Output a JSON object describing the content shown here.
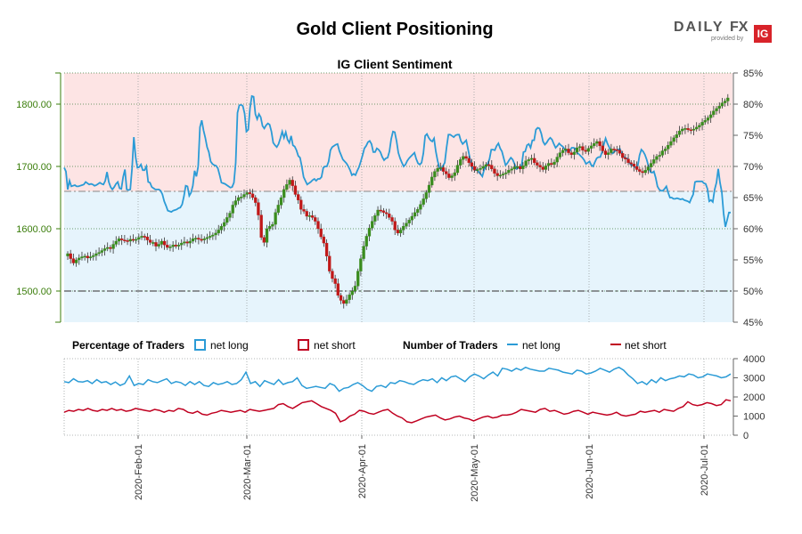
{
  "title": "Gold Client Positioning",
  "subtitle": "IG Client Sentiment",
  "logo": {
    "brand": "DAILY",
    "brand_fx": "FX",
    "provided_by": "provided by",
    "ig": "IG"
  },
  "colors": {
    "net_long": "#2b9bd6",
    "net_short": "#c00020",
    "candle_up": "#3a8c1e",
    "candle_down": "#c01818",
    "bg_short_zone": "#fde4e4",
    "bg_long_zone": "#e6f4fc",
    "left_axis": "#3a7d0a",
    "grid": "#3f7f3f"
  },
  "legend": {
    "percentage_header": "Percentage of Traders",
    "number_header": "Number of Traders",
    "net_long": "net long",
    "net_short": "net short"
  },
  "chart_data": [
    {
      "type": "line",
      "name": "price_and_sentiment",
      "left_axis": {
        "ticks": [
          "1500.00",
          "1600.00",
          "1700.00",
          "1800.00"
        ],
        "range": [
          1450,
          1850
        ]
      },
      "right_axis": {
        "ticks": [
          "45%",
          "50%",
          "55%",
          "60%",
          "65%",
          "70%",
          "75%",
          "80%",
          "85%"
        ],
        "range": [
          45,
          85
        ]
      },
      "reference_lines": {
        "price_hline": 1500,
        "sentiment_hline": 66
      },
      "series": [
        {
          "name": "net long",
          "axis": "right",
          "values": [
            69.8,
            69.2,
            66.3,
            67.7,
            66.8,
            66.9,
            67,
            66.8,
            66.8,
            66.9,
            67,
            67.1,
            67.5,
            67.3,
            67.1,
            67.2,
            67.1,
            66.9,
            67,
            67.2,
            67.4,
            67.2,
            67.1,
            67.7,
            69.1,
            67.5,
            66.7,
            66.3,
            66.7,
            67.2,
            67.5,
            66.5,
            66.4,
            68.3,
            69.5,
            66.3,
            66.2,
            66.3,
            69.7,
            74.7,
            71.5,
            69.8,
            69.9,
            70.3,
            69.4,
            69.4,
            70,
            67.5,
            67.4,
            66.7,
            66.5,
            66.3,
            66.3,
            66.3,
            66.1,
            65.5,
            64.4,
            63.7,
            62.9,
            62.8,
            62.7,
            62.9,
            63,
            63.1,
            63.3,
            63.4,
            63.9,
            65.2,
            66.9,
            66.8,
            65.3,
            65.8,
            66.9,
            69.3,
            68.4,
            70,
            76.3,
            77.4,
            75.8,
            74.6,
            73.1,
            72.3,
            70.8,
            70.4,
            70.2,
            70.1,
            69.7,
            68.6,
            67.4,
            67.3,
            67.2,
            67,
            66.8,
            66.6,
            66.7,
            67.4,
            70.6,
            78.6,
            79.8,
            79.9,
            79.7,
            78.5,
            75.6,
            75.9,
            79.4,
            81.3,
            81.2,
            78.4,
            77.6,
            78.4,
            77.9,
            76.5,
            76.1,
            76.6,
            76.9,
            76.7,
            75.6,
            73.8,
            73.4,
            73.1,
            73.6,
            74.5,
            75.6,
            74.6,
            75.5,
            74.3,
            73.8,
            74.9,
            73.4,
            73.2,
            72.6,
            71.7,
            71.4,
            70,
            68.3,
            67.7,
            67.1,
            67.3,
            67.5,
            67.8,
            68,
            67.7,
            68,
            68,
            68.3,
            69.8,
            70,
            70,
            70.8,
            72.6,
            73.1,
            73.3,
            73.5,
            73.6,
            72.5,
            71.8,
            71.1,
            70.8,
            70.5,
            70,
            69.4,
            68.6,
            68.8,
            68.6,
            69.3,
            69.9,
            70.8,
            71.8,
            72.9,
            73.3,
            73.9,
            74.1,
            73.6,
            72.3,
            72.3,
            72.9,
            72.7,
            72.3,
            71.5,
            71,
            71.3,
            71.4,
            72.4,
            74.4,
            75.6,
            75.5,
            74.1,
            72.2,
            71.3,
            70.6,
            70,
            70.3,
            70.9,
            71.3,
            71.6,
            71.9,
            72.2,
            71.2,
            70.5,
            70.3,
            70.6,
            72.1,
            74.9,
            75.2,
            74.6,
            74.2,
            74,
            74.5,
            72.4,
            70.9,
            69.8,
            69.5,
            70.1,
            70.6,
            73,
            75.1,
            75.1,
            74.9,
            74.7,
            75,
            75.1,
            75.1,
            74.1,
            73.6,
            73.9,
            74.2,
            72.8,
            71.4,
            70,
            69.6,
            69.4,
            69.5,
            69.1,
            68.8,
            68.4,
            69.5,
            70,
            70.4,
            71.2,
            72.7,
            72.7,
            72.6,
            73.3,
            73.7,
            72.9,
            72.4,
            71.3,
            70.2,
            70.5,
            71,
            71.4,
            71.1,
            70.4,
            69.6,
            69.8,
            69.7,
            70.2,
            72.3,
            72.4,
            73.4,
            73.6,
            73,
            74.2,
            74.2,
            75.9,
            76.2,
            76.1,
            75.3,
            74,
            73.5,
            73.8,
            74.3,
            74.6,
            74.3,
            73.6,
            73,
            73.3,
            73.7,
            73.4,
            73.2,
            72.8,
            72.5,
            72.6,
            72.5,
            73,
            73,
            72.9,
            72.2,
            72,
            71.7,
            71.4,
            71,
            70.4,
            70.6,
            70.8,
            70.2,
            70,
            70.7,
            71.3,
            71.5,
            71.5,
            72.3,
            73.5,
            74.5,
            73.7,
            73.1,
            72.4,
            72.1,
            72.4,
            72.6,
            72.7,
            72.8,
            72.1,
            71.6,
            71.3,
            71.3,
            70.8,
            70.3,
            70.2,
            70,
            69.8,
            70.1,
            71.8,
            72.7,
            72.4,
            71.9,
            71.1,
            70,
            69.1,
            69,
            69.2,
            68.2,
            66.8,
            66.3,
            66.1,
            66.1,
            66.4,
            66.8,
            65.8,
            65,
            65,
            64.8,
            64.8,
            64.9,
            64.8,
            64.7,
            64.8,
            64.6,
            64.5,
            64.4,
            64.2,
            64.9,
            65.5,
            67.5,
            67.6,
            67.6,
            67.6,
            67.6,
            67.3,
            67.2,
            66.4,
            64.4,
            64.6,
            64.3,
            66.3,
            67.4,
            69.6,
            67.4,
            65.9,
            62.5,
            60.3,
            61.4,
            62.6,
            62.6
          ]
        },
        {
          "name": "price",
          "axis": "left",
          "kind": "candlestick",
          "closes": [
            1560,
            1552,
            1545,
            1550,
            1553,
            1555,
            1556,
            1553,
            1555,
            1557,
            1560,
            1562,
            1565,
            1568,
            1570,
            1568,
            1575,
            1580,
            1584,
            1582,
            1581,
            1580,
            1583,
            1582,
            1583,
            1586,
            1588,
            1587,
            1582,
            1578,
            1578,
            1572,
            1575,
            1580,
            1574,
            1570,
            1571,
            1574,
            1572,
            1574,
            1577,
            1579,
            1577,
            1580,
            1584,
            1585,
            1583,
            1582,
            1584,
            1586,
            1588,
            1590,
            1593,
            1598,
            1604,
            1610,
            1618,
            1625,
            1638,
            1645,
            1650,
            1651,
            1655,
            1658,
            1656,
            1650,
            1642,
            1622,
            1586,
            1578,
            1600,
            1604,
            1607,
            1626,
            1638,
            1650,
            1663,
            1671,
            1678,
            1669,
            1655,
            1646,
            1631,
            1628,
            1620,
            1621,
            1618,
            1612,
            1600,
            1587,
            1577,
            1556,
            1532,
            1520,
            1512,
            1493,
            1485,
            1480,
            1486,
            1494,
            1500,
            1508,
            1532,
            1552,
            1572,
            1588,
            1601,
            1612,
            1621,
            1630,
            1629,
            1626,
            1624,
            1618,
            1612,
            1598,
            1593,
            1598,
            1604,
            1609,
            1614,
            1620,
            1626,
            1631,
            1639,
            1648,
            1658,
            1670,
            1683,
            1692,
            1697,
            1698,
            1692,
            1688,
            1682,
            1685,
            1690,
            1702,
            1711,
            1716,
            1713,
            1706,
            1700,
            1694,
            1695,
            1697,
            1700,
            1703,
            1702,
            1696,
            1689,
            1685,
            1686,
            1688,
            1690,
            1694,
            1696,
            1699,
            1700,
            1696,
            1701,
            1709,
            1711,
            1713,
            1706,
            1702,
            1699,
            1695,
            1701,
            1705,
            1703,
            1707,
            1715,
            1722,
            1726,
            1728,
            1722,
            1719,
            1723,
            1730,
            1732,
            1726,
            1724,
            1729,
            1733,
            1737,
            1740,
            1733,
            1725,
            1719,
            1722,
            1728,
            1727,
            1726,
            1721,
            1714,
            1712,
            1706,
            1704,
            1700,
            1695,
            1692,
            1690,
            1694,
            1699,
            1705,
            1711,
            1716,
            1718,
            1725,
            1728,
            1734,
            1740,
            1746,
            1751,
            1757,
            1760,
            1761,
            1759,
            1758,
            1760,
            1763,
            1766,
            1771,
            1774,
            1778,
            1783,
            1789,
            1793,
            1797,
            1802,
            1805,
            1810
          ]
        }
      ]
    },
    {
      "type": "line",
      "name": "number_of_traders",
      "right_axis": {
        "ticks": [
          "0",
          "1000",
          "2000",
          "3000",
          "4000"
        ],
        "range": [
          0,
          4000
        ]
      },
      "x_ticks": [
        "2020-Feb-01",
        "2020-Mar-01",
        "2020-Apr-01",
        "2020-May-01",
        "2020-Jun-01",
        "2020-Jul-01"
      ],
      "series": [
        {
          "name": "net long",
          "values": [
            2800,
            2750,
            2950,
            2800,
            2780,
            2850,
            2700,
            2900,
            2750,
            2800,
            2650,
            2780,
            2600,
            2700,
            3100,
            2600,
            2700,
            2650,
            2900,
            2800,
            2750,
            2850,
            2950,
            2700,
            2800,
            2750,
            2600,
            2800,
            2650,
            2800,
            2600,
            2550,
            2750,
            2650,
            2700,
            2800,
            2650,
            2700,
            2900,
            3300,
            2700,
            2800,
            2550,
            2850,
            2750,
            2650,
            2900,
            2650,
            2750,
            2800,
            3000,
            2600,
            2450,
            2500,
            2550,
            2500,
            2450,
            2700,
            2600,
            2300,
            2450,
            2500,
            2650,
            2750,
            2600,
            2400,
            2300,
            2550,
            2600,
            2500,
            2750,
            2700,
            2850,
            2800,
            2700,
            2650,
            2800,
            2900,
            2850,
            2950,
            2750,
            3000,
            2850,
            3050,
            3100,
            2950,
            2800,
            3050,
            3200,
            3100,
            2950,
            3150,
            3300,
            3100,
            3500,
            3450,
            3350,
            3500,
            3400,
            3550,
            3450,
            3400,
            3350,
            3350,
            3500,
            3450,
            3400,
            3300,
            3250,
            3200,
            3400,
            3350,
            3200,
            3250,
            3350,
            3500,
            3400,
            3300,
            3450,
            3550,
            3400,
            3150,
            2950,
            2700,
            2800,
            2650,
            2900,
            2750,
            3000,
            2850,
            2950,
            3000,
            3100,
            3050,
            3200,
            3150,
            3000,
            3050,
            3200,
            3150,
            3100,
            3000,
            3050,
            3200
          ]
        },
        {
          "name": "net short",
          "values": [
            1200,
            1300,
            1250,
            1350,
            1300,
            1400,
            1300,
            1250,
            1350,
            1300,
            1400,
            1300,
            1350,
            1250,
            1300,
            1400,
            1350,
            1300,
            1250,
            1350,
            1300,
            1200,
            1300,
            1250,
            1400,
            1350,
            1200,
            1150,
            1250,
            1100,
            1050,
            1150,
            1200,
            1300,
            1250,
            1200,
            1250,
            1300,
            1200,
            1350,
            1300,
            1250,
            1300,
            1350,
            1400,
            1600,
            1650,
            1500,
            1400,
            1550,
            1700,
            1750,
            1800,
            1650,
            1500,
            1400,
            1300,
            1150,
            700,
            800,
            1000,
            1100,
            1300,
            1250,
            1150,
            1100,
            1200,
            1300,
            1350,
            1150,
            1000,
            900,
            700,
            650,
            750,
            850,
            950,
            1000,
            1050,
            900,
            800,
            850,
            950,
            1000,
            900,
            850,
            750,
            850,
            950,
            1000,
            900,
            950,
            1050,
            1050,
            1100,
            1200,
            1350,
            1300,
            1250,
            1200,
            1350,
            1400,
            1250,
            1300,
            1200,
            1100,
            1150,
            1250,
            1300,
            1200,
            1100,
            1200,
            1150,
            1100,
            1050,
            1100,
            1200,
            1050,
            1000,
            1050,
            1100,
            1250,
            1200,
            1250,
            1300,
            1200,
            1350,
            1300,
            1250,
            1400,
            1500,
            1750,
            1600,
            1550,
            1600,
            1700,
            1650,
            1550,
            1600,
            1850,
            1800
          ]
        }
      ]
    }
  ]
}
